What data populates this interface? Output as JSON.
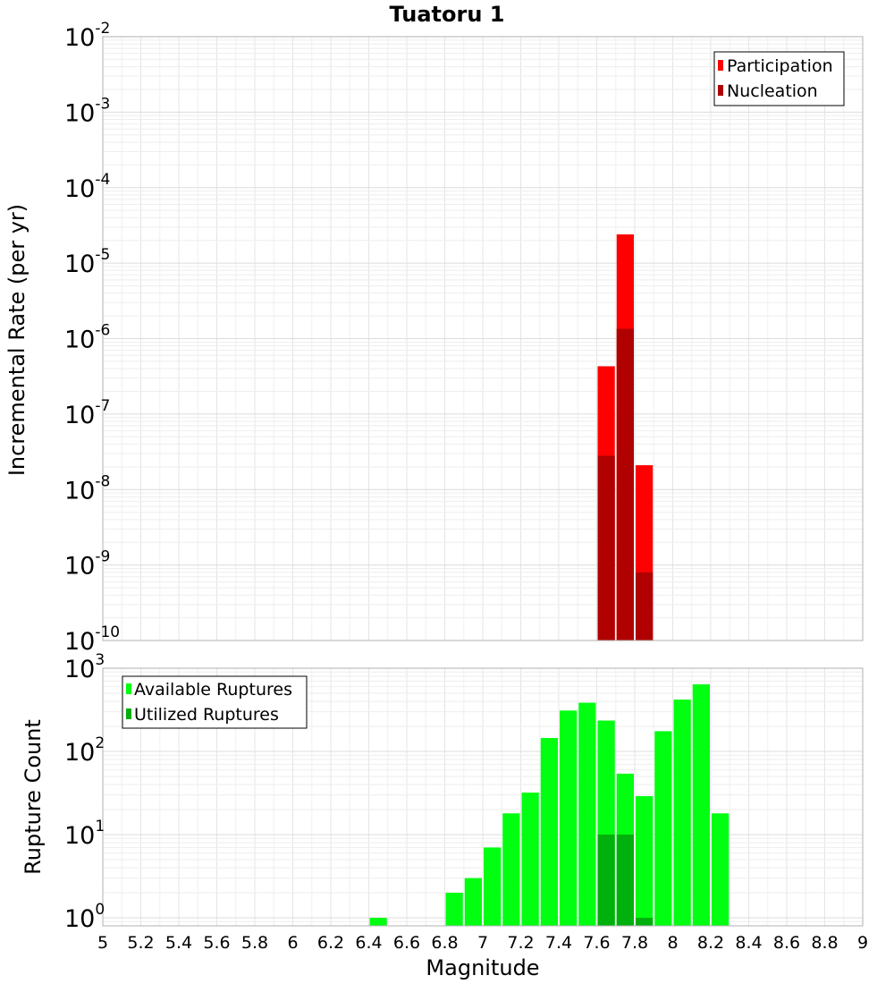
{
  "chart_data": [
    {
      "type": "bar",
      "title": "Tuatoru 1",
      "xlabel": "Magnitude",
      "ylabel": "Incremental Rate (per yr)",
      "yscale": "log",
      "xlim": [
        5,
        9
      ],
      "ylim": [
        1e-10,
        0.01
      ],
      "ytick_exponents": [
        "-2",
        "-3",
        "-4",
        "-5",
        "-6",
        "-7",
        "-8",
        "-9",
        "-10"
      ],
      "legend_position": "top-right",
      "series": [
        {
          "name": "Participation",
          "color": "#ff0000",
          "points": [
            {
              "x": 7.65,
              "y": 4.3e-07
            },
            {
              "x": 7.75,
              "y": 2.4e-05
            },
            {
              "x": 7.85,
              "y": 2.1e-08
            }
          ]
        },
        {
          "name": "Nucleation",
          "color": "#b00000",
          "points": [
            {
              "x": 7.65,
              "y": 2.8e-08
            },
            {
              "x": 7.75,
              "y": 1.35e-06
            },
            {
              "x": 7.85,
              "y": 8e-10
            }
          ]
        }
      ]
    },
    {
      "type": "bar",
      "xlabel": "Magnitude",
      "ylabel": "Rupture Count",
      "yscale": "log",
      "xlim": [
        5,
        9
      ],
      "ylim": [
        0.8,
        1000
      ],
      "ytick_exponents": [
        "3",
        "2",
        "1",
        "0"
      ],
      "xticks": [
        "5",
        "5.2",
        "5.4",
        "5.6",
        "5.8",
        "6",
        "6.2",
        "6.4",
        "6.6",
        "6.8",
        "7",
        "7.2",
        "7.4",
        "7.6",
        "7.8",
        "8",
        "8.2",
        "8.4",
        "8.6",
        "8.8",
        "9"
      ],
      "legend_position": "top-left",
      "series": [
        {
          "name": "Available Ruptures",
          "color": "#00ff11",
          "points": [
            {
              "x": 6.45,
              "y": 1
            },
            {
              "x": 6.85,
              "y": 2
            },
            {
              "x": 6.95,
              "y": 3
            },
            {
              "x": 7.05,
              "y": 7
            },
            {
              "x": 7.15,
              "y": 18
            },
            {
              "x": 7.25,
              "y": 32
            },
            {
              "x": 7.35,
              "y": 145
            },
            {
              "x": 7.45,
              "y": 310
            },
            {
              "x": 7.55,
              "y": 385
            },
            {
              "x": 7.65,
              "y": 235
            },
            {
              "x": 7.75,
              "y": 54
            },
            {
              "x": 7.85,
              "y": 29
            },
            {
              "x": 7.95,
              "y": 175
            },
            {
              "x": 8.05,
              "y": 420
            },
            {
              "x": 8.15,
              "y": 640
            },
            {
              "x": 8.25,
              "y": 18
            }
          ]
        },
        {
          "name": "Utilized Ruptures",
          "color": "#00b00c",
          "points": [
            {
              "x": 7.65,
              "y": 10
            },
            {
              "x": 7.75,
              "y": 10
            },
            {
              "x": 7.85,
              "y": 1
            }
          ]
        }
      ]
    }
  ]
}
